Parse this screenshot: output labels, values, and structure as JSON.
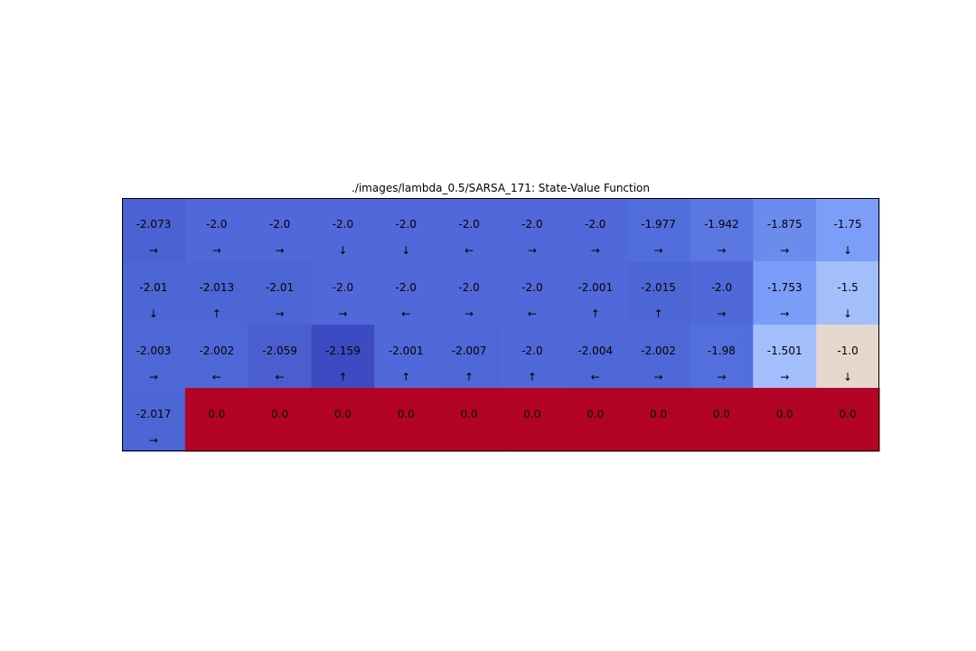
{
  "chart_data": {
    "type": "heatmap",
    "title": "./images/lambda_0.5/SARSA_171: State-Value Function",
    "rows": 4,
    "cols": 12,
    "values": [
      [
        "-2.073",
        "-2.0",
        "-2.0",
        "-2.0",
        "-2.0",
        "-2.0",
        "-2.0",
        "-2.0",
        "-1.977",
        "-1.942",
        "-1.875",
        "-1.75"
      ],
      [
        "-2.01",
        "-2.013",
        "-2.01",
        "-2.0",
        "-2.0",
        "-2.0",
        "-2.0",
        "-2.001",
        "-2.015",
        "-2.0",
        "-1.753",
        "-1.5"
      ],
      [
        "-2.003",
        "-2.002",
        "-2.059",
        "-2.159",
        "-2.001",
        "-2.007",
        "-2.0",
        "-2.004",
        "-2.002",
        "-1.98",
        "-1.501",
        "-1.0"
      ],
      [
        "-2.017",
        "0.0",
        "0.0",
        "0.0",
        "0.0",
        "0.0",
        "0.0",
        "0.0",
        "0.0",
        "0.0",
        "0.0",
        "0.0"
      ]
    ],
    "arrows": [
      [
        "→",
        "→",
        "→",
        "↓",
        "↓",
        "←",
        "→",
        "→",
        "→",
        "→",
        "→",
        "↓"
      ],
      [
        "↓",
        "↑",
        "→",
        "→",
        "←",
        "→",
        "←",
        "↑",
        "↑",
        "→",
        "→",
        "↓"
      ],
      [
        "→",
        "←",
        "←",
        "↑",
        "↑",
        "↑",
        "↑",
        "←",
        "→",
        "→",
        "→",
        "↓"
      ],
      [
        "→",
        "",
        "",
        "",
        "",
        "",
        "",
        "",
        "",
        "",
        "",
        ""
      ]
    ],
    "colormap": "coolwarm",
    "cell_colors": [
      [
        "#4a62d4",
        "#5068d9",
        "#5068d9",
        "#5068d9",
        "#5068d9",
        "#5068d9",
        "#5068d9",
        "#5068d9",
        "#516cdb",
        "#5b78e2",
        "#6b8ced",
        "#7d9ef8"
      ],
      [
        "#4c66d6",
        "#4c66d6",
        "#4c66d6",
        "#5068d9",
        "#5068d9",
        "#5068d9",
        "#5068d9",
        "#5068d9",
        "#4c66d6",
        "#5068d9",
        "#7b9cf7",
        "#a2bffc"
      ],
      [
        "#4e68d8",
        "#4e68d8",
        "#4a5ed0",
        "#3d4bc2",
        "#5068d9",
        "#4e66d7",
        "#5068d9",
        "#4e68d8",
        "#4e68d8",
        "#526fdd",
        "#a2befd",
        "#e6d7cc"
      ],
      [
        "#4c66d6",
        "#b40426",
        "#b40426",
        "#b40426",
        "#b40426",
        "#b40426",
        "#b40426",
        "#b40426",
        "#b40426",
        "#b40426",
        "#b40426",
        "#b40426"
      ]
    ]
  }
}
